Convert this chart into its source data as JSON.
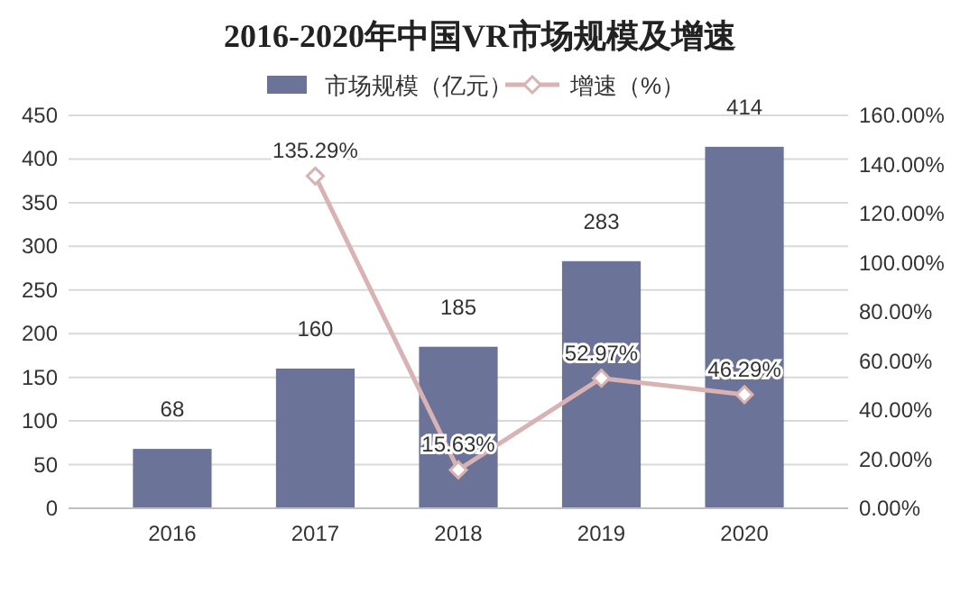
{
  "chart_data": {
    "type": "bar",
    "title": "2016-2020年中国VR市场规模及增速",
    "categories": [
      "2016",
      "2017",
      "2018",
      "2019",
      "2020"
    ],
    "series": [
      {
        "name": "市场规模（亿元）",
        "color": "#6b7399",
        "values": [
          68,
          160,
          185,
          283,
          414
        ],
        "value_labels": [
          "68",
          "160",
          "185",
          "283",
          "414"
        ]
      },
      {
        "name": "增速（%）",
        "type": "line",
        "axis": "y2",
        "color": "#d9b3b3",
        "marker": "diamond",
        "values": [
          null,
          135.29,
          15.63,
          52.97,
          46.29
        ],
        "value_labels": [
          null,
          "135.29%",
          "15.63%",
          "52.97%",
          "46.29%"
        ]
      }
    ],
    "ylim": [
      0,
      450
    ],
    "yticks": [
      0,
      50,
      100,
      150,
      200,
      250,
      300,
      350,
      400,
      450
    ],
    "y2lim": [
      0,
      160
    ],
    "y2ticks": [
      {
        "value": 0,
        "label": "0.00%"
      },
      {
        "value": 20,
        "label": "20.00%"
      },
      {
        "value": 40,
        "label": "40.00%"
      },
      {
        "value": 60,
        "label": "60.00%"
      },
      {
        "value": 80,
        "label": "80.00%"
      },
      {
        "value": 100,
        "label": "100.00%"
      },
      {
        "value": 120,
        "label": "120.00%"
      },
      {
        "value": 140,
        "label": "140.00%"
      },
      {
        "value": 160,
        "label": "160.00%"
      }
    ],
    "grid": "y",
    "legend": "top"
  }
}
